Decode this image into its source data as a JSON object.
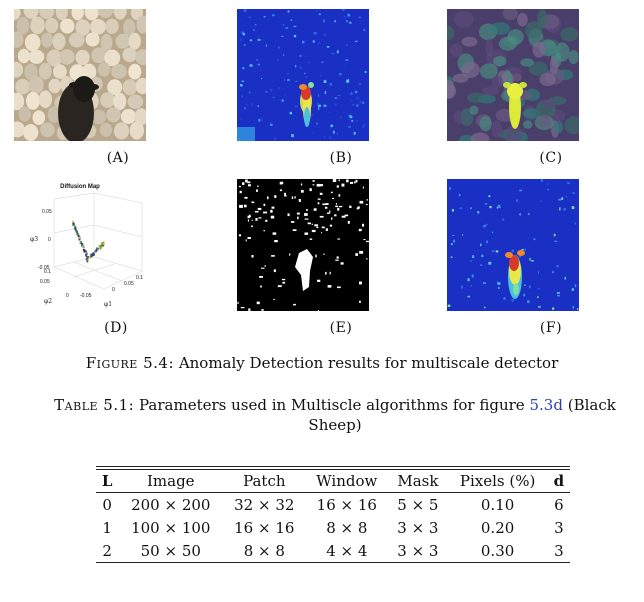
{
  "figure": {
    "panels": [
      {
        "label": "(A)",
        "kind": "photo"
      },
      {
        "label": "(B)",
        "kind": "heatmap"
      },
      {
        "label": "(C)",
        "kind": "overlay"
      },
      {
        "label": "(D)",
        "kind": "diffusion-plot"
      },
      {
        "label": "(E)",
        "kind": "binary-mask"
      },
      {
        "label": "(F)",
        "kind": "heatmap"
      }
    ],
    "diffusion_plot": {
      "title": "Diffusion Map",
      "z_axis_label": "φ3",
      "y_axis_label": "φ2",
      "x_axis_label": "φ1",
      "z_ticks": [
        "0.05",
        "0",
        "-0.05"
      ],
      "y_ticks": [
        "0.1",
        "0.05",
        "0"
      ],
      "x_ticks": [
        "-0.05",
        "0",
        "0.05",
        "0.1"
      ]
    },
    "caption_prefix": "Figure 5.4:",
    "caption_text": "Anomaly Detection results for multiscale detector"
  },
  "table": {
    "caption_prefix": "Table 5.1:",
    "caption_text_before_ref": "Parameters used in Multiscle algorithms for figure",
    "caption_ref": "5.3d",
    "caption_text_after_ref": "(Black Sheep)",
    "headers": [
      "L",
      "Image",
      "Patch",
      "Window",
      "Mask",
      "Pixels (%)",
      "d"
    ],
    "rows": [
      [
        "0",
        "200 × 200",
        "32 × 32",
        "16 × 16",
        "5 × 5",
        "0.10",
        "6"
      ],
      [
        "1",
        "100 × 100",
        "16 × 16",
        "8 × 8",
        "3 × 3",
        "0.20",
        "3"
      ],
      [
        "2",
        "50 × 50",
        "8 × 8",
        "4 × 4",
        "3 × 3",
        "0.30",
        "3"
      ]
    ]
  },
  "colors": {
    "heatmap_background": "#1a2fc4",
    "anomaly_core": "#d63a2a",
    "link": "#2b3fb8"
  }
}
